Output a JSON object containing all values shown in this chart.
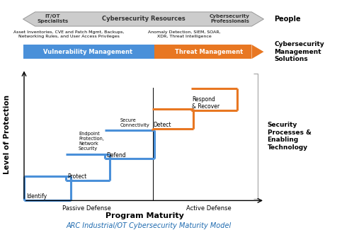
{
  "title": "ARC Industrial/OT Cybersecurity Maturity Model",
  "title_color": "#1F6BB0",
  "xlabel": "Program Maturity",
  "ylabel": "Level of Protection",
  "people_label": "People",
  "vuln_text": "Vulnerability Management",
  "threat_text": "Threat Management",
  "vuln_above": "Asset Inventories, CVE and Patch Mgmt, Backups,\nNetworking Rules, and User Access Privileges",
  "threat_above": "Anomaly Detection, SIEM, SOAR,\nXDR, Threat Intelligence",
  "cms_label": "Cybersecurity\nManagement\nSolutions",
  "spe_label": "Security\nProcesses &\nEnabling\nTechnology",
  "passive_label": "Passive Defense",
  "active_label": "Active Defense",
  "blue_color": "#4A90D9",
  "orange_color": "#E87722",
  "gray_color": "#CCCCCC",
  "gray_dark": "#999999",
  "people_left": "IT/OT\nSpecialists",
  "people_center": "Cybersecurity Resources",
  "people_right": "Cybersecurity\nProfessionals",
  "endpoint_label": "Endpoint\nProtection,\nNetwork\nSecurity",
  "connectivity_label": "Secure\nConnectivity",
  "identify_label": "Identify",
  "protect_label": "Protect",
  "defend_label": "Defend",
  "detect_label": "Detect",
  "respond_label": "Respond\n& Recover",
  "fig_w": 5.0,
  "fig_h": 3.25,
  "dpi": 100
}
